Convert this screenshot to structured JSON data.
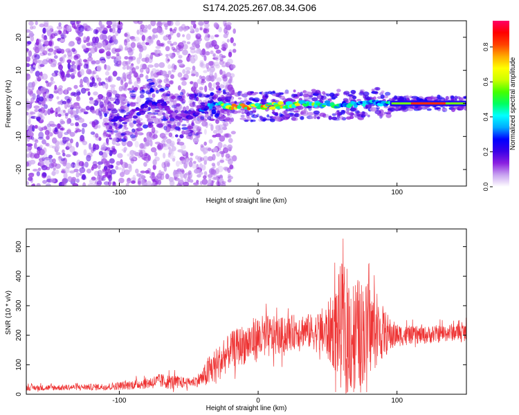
{
  "figure_title": "S174.2025.267.08.34.G06",
  "chart_data": [
    {
      "type": "heatmap",
      "title": "S174.2025.267.08.34.G06",
      "xlabel": "Height of straight line (km)",
      "ylabel": "Frequency (Hz)",
      "xlim": [
        -167,
        150
      ],
      "ylim": [
        -25,
        25
      ],
      "x_ticks": [
        -100,
        0,
        100
      ],
      "x_tick_labels": [
        "-100",
        "0",
        "100"
      ],
      "y_ticks": [
        -20,
        -10,
        0,
        10,
        20
      ],
      "y_tick_labels": [
        "-20",
        "-10",
        "0",
        "10",
        "20"
      ],
      "colorbar": {
        "label": "Normalized spectral amplitude",
        "range": [
          0,
          0.95
        ],
        "ticks": [
          0,
          0.2,
          0.4,
          0.6,
          0.8
        ],
        "tick_labels": [
          "0.0",
          "0.2",
          "0.4",
          "0.6",
          "0.8"
        ],
        "colors": [
          "#ffffff",
          "#c9a4f0",
          "#8a1fe0",
          "#3a00e8",
          "#0000ff",
          "#00aaff",
          "#00ffff",
          "#00ff60",
          "#44ff00",
          "#ccff00",
          "#ffff00",
          "#ffaa00",
          "#ff4000",
          "#ff0000",
          "#ff0066"
        ]
      },
      "ridge": {
        "description_points_x": [
          -100,
          -90,
          -80,
          -70,
          -60,
          -50,
          -40,
          -30,
          -20,
          -10,
          0,
          20,
          40,
          60,
          80,
          100,
          120,
          150
        ],
        "center_freq": [
          -5,
          -3,
          0,
          0,
          -4,
          -4,
          -2,
          0,
          -1,
          -1,
          -1,
          -0.5,
          0,
          -0.5,
          0,
          0,
          0,
          0
        ],
        "peak_amplitude": [
          0.25,
          0.25,
          0.3,
          0.25,
          0.2,
          0.22,
          0.35,
          0.5,
          0.85,
          0.85,
          0.9,
          0.8,
          0.7,
          0.5,
          0.5,
          0.55,
          0.9,
          0.6
        ]
      }
    },
    {
      "type": "line",
      "title": "",
      "xlabel": "Height of straight line (km)",
      "ylabel": "SNR (10 * v/v)",
      "xlim": [
        -167,
        150
      ],
      "ylim": [
        0,
        560
      ],
      "x_ticks": [
        -100,
        0,
        100
      ],
      "x_tick_labels": [
        "-100",
        "0",
        "100"
      ],
      "y_ticks": [
        0,
        100,
        200,
        300,
        400,
        500
      ],
      "y_tick_labels": [
        "0",
        "100",
        "200",
        "300",
        "400",
        "500"
      ],
      "series": [
        {
          "name": "SNR",
          "color": "#ee3333",
          "x": [
            -167,
            -150,
            -130,
            -110,
            -95,
            -80,
            -70,
            -60,
            -50,
            -45,
            -40,
            -35,
            -30,
            -25,
            -20,
            -10,
            0,
            10,
            20,
            30,
            40,
            50,
            55,
            60,
            65,
            70,
            75,
            80,
            85,
            90,
            95,
            100,
            110,
            120,
            130,
            140,
            150
          ],
          "mean": [
            22,
            22,
            24,
            25,
            30,
            38,
            45,
            40,
            40,
            45,
            55,
            80,
            100,
            120,
            150,
            170,
            190,
            195,
            200,
            220,
            210,
            210,
            220,
            230,
            210,
            200,
            210,
            220,
            210,
            210,
            200,
            200,
            200,
            200,
            205,
            210,
            210
          ],
          "spread": [
            10,
            10,
            10,
            12,
            15,
            20,
            25,
            25,
            15,
            20,
            30,
            60,
            60,
            60,
            60,
            70,
            80,
            70,
            60,
            60,
            60,
            100,
            140,
            220,
            220,
            200,
            180,
            160,
            120,
            90,
            60,
            40,
            30,
            30,
            30,
            30,
            30
          ]
        }
      ]
    }
  ]
}
